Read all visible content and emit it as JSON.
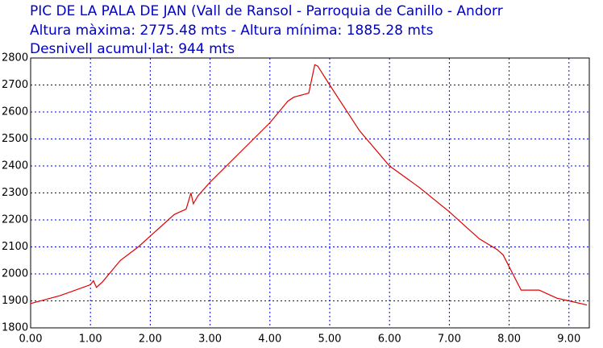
{
  "chart_data": {
    "type": "line",
    "title": "PIC DE LA PALA DE JAN (Vall de Ransol - Parroquia de Canillo - Andorr",
    "subtitle": "Altura màxima: 2775.48 mts - Altura mínima: 1885.28 mts",
    "annotation": "Desnivell acumul·lat: 944 mts",
    "x": [
      0,
      0.5,
      1.0,
      1.05,
      1.1,
      1.2,
      1.5,
      1.8,
      2.0,
      2.3,
      2.4,
      2.6,
      2.68,
      2.72,
      2.8,
      3.0,
      3.5,
      4.0,
      4.3,
      4.4,
      4.65,
      4.75,
      4.8,
      5.0,
      5.5,
      6.0,
      6.5,
      7.0,
      7.5,
      7.8,
      7.9,
      8.2,
      8.5,
      8.8,
      9.0,
      9.3
    ],
    "series": [
      {
        "color": "#e00000",
        "values": [
          1890,
          1920,
          1960,
          1975,
          1950,
          1970,
          2050,
          2100,
          2140,
          2200,
          2220,
          2240,
          2300,
          2260,
          2290,
          2340,
          2450,
          2560,
          2640,
          2655,
          2670,
          2775,
          2770,
          2700,
          2530,
          2400,
          2320,
          2230,
          2130,
          2090,
          2070,
          1940,
          1940,
          1910,
          1900,
          1885
        ]
      }
    ],
    "xlim": [
      0,
      9.34
    ],
    "xticks": [
      {
        "value": 0,
        "label": "0.00"
      },
      {
        "value": 1,
        "label": "1.00"
      },
      {
        "value": 2,
        "label": "2.00"
      },
      {
        "value": 3,
        "label": "3.00"
      },
      {
        "value": 4,
        "label": "4.00"
      },
      {
        "value": 5,
        "label": "5.00"
      },
      {
        "value": 6,
        "label": "6.00"
      },
      {
        "value": 7,
        "label": "7.00"
      },
      {
        "value": 8,
        "label": "8.00"
      },
      {
        "value": 9,
        "label": "9.00"
      }
    ],
    "ylim": [
      1800,
      2800
    ],
    "yticks": [
      1800,
      1900,
      2000,
      2100,
      2200,
      2300,
      2400,
      2500,
      2600,
      2700,
      2800
    ],
    "grid": true,
    "grid_color": "#0000ff"
  }
}
